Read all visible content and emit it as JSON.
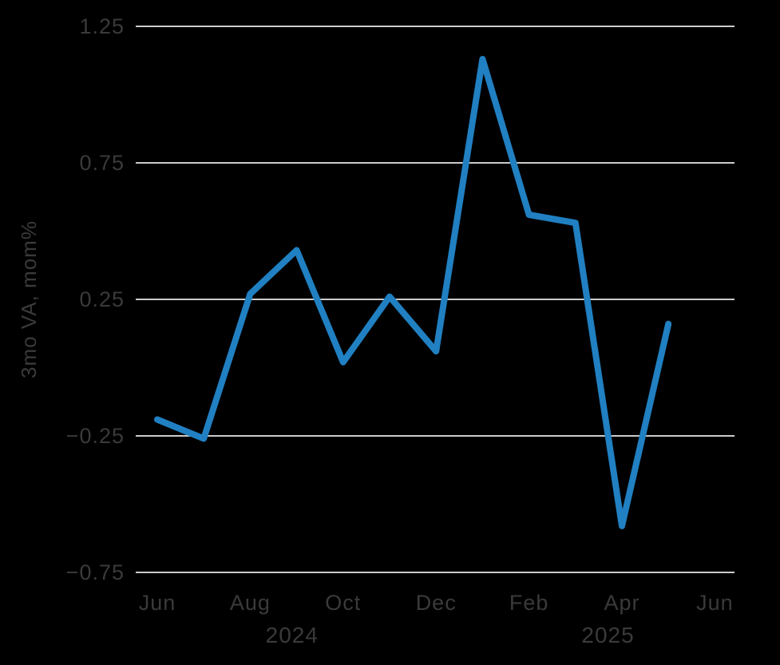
{
  "chart_data": {
    "type": "line",
    "x": [
      "Jun 2024",
      "Jul 2024",
      "Aug 2024",
      "Sep 2024",
      "Oct 2024",
      "Nov 2024",
      "Dec 2024",
      "Jan 2025",
      "Feb 2025",
      "Mar 2025",
      "Apr 2025",
      "May 2025"
    ],
    "values": [
      -0.19,
      -0.26,
      0.27,
      0.43,
      0.02,
      0.26,
      0.06,
      1.13,
      0.56,
      0.53,
      -0.58,
      0.16
    ],
    "title": "",
    "xlabel": "",
    "ylabel": "3mo VA, mom%",
    "ylim": [
      -0.875,
      1.37
    ],
    "yticks": [
      {
        "value": 1.25,
        "label": "1.25"
      },
      {
        "value": 0.75,
        "label": "0.75"
      },
      {
        "value": 0.25,
        "label": "0.25"
      },
      {
        "value": -0.25,
        "label": "−0.25"
      },
      {
        "value": -0.75,
        "label": "−0.75"
      }
    ],
    "xticks": [
      {
        "month_index": 0,
        "label": "Jun"
      },
      {
        "month_index": 2,
        "label": "Aug"
      },
      {
        "month_index": 4,
        "label": "Oct"
      },
      {
        "month_index": 6,
        "label": "Dec"
      },
      {
        "month_index": 8,
        "label": "Feb"
      },
      {
        "month_index": 10,
        "label": "Apr"
      },
      {
        "month_index": 12,
        "label": "Jun"
      }
    ],
    "year_labels": [
      {
        "month_index": 2.9,
        "label": "2024"
      },
      {
        "month_index": 9.7,
        "label": "2025"
      }
    ],
    "grid": "horizontal",
    "legend": "none",
    "colors": {
      "line": "#2080c2",
      "grid": "#e8e8e8",
      "text": "#3a3a3a",
      "background": "#000000"
    }
  }
}
